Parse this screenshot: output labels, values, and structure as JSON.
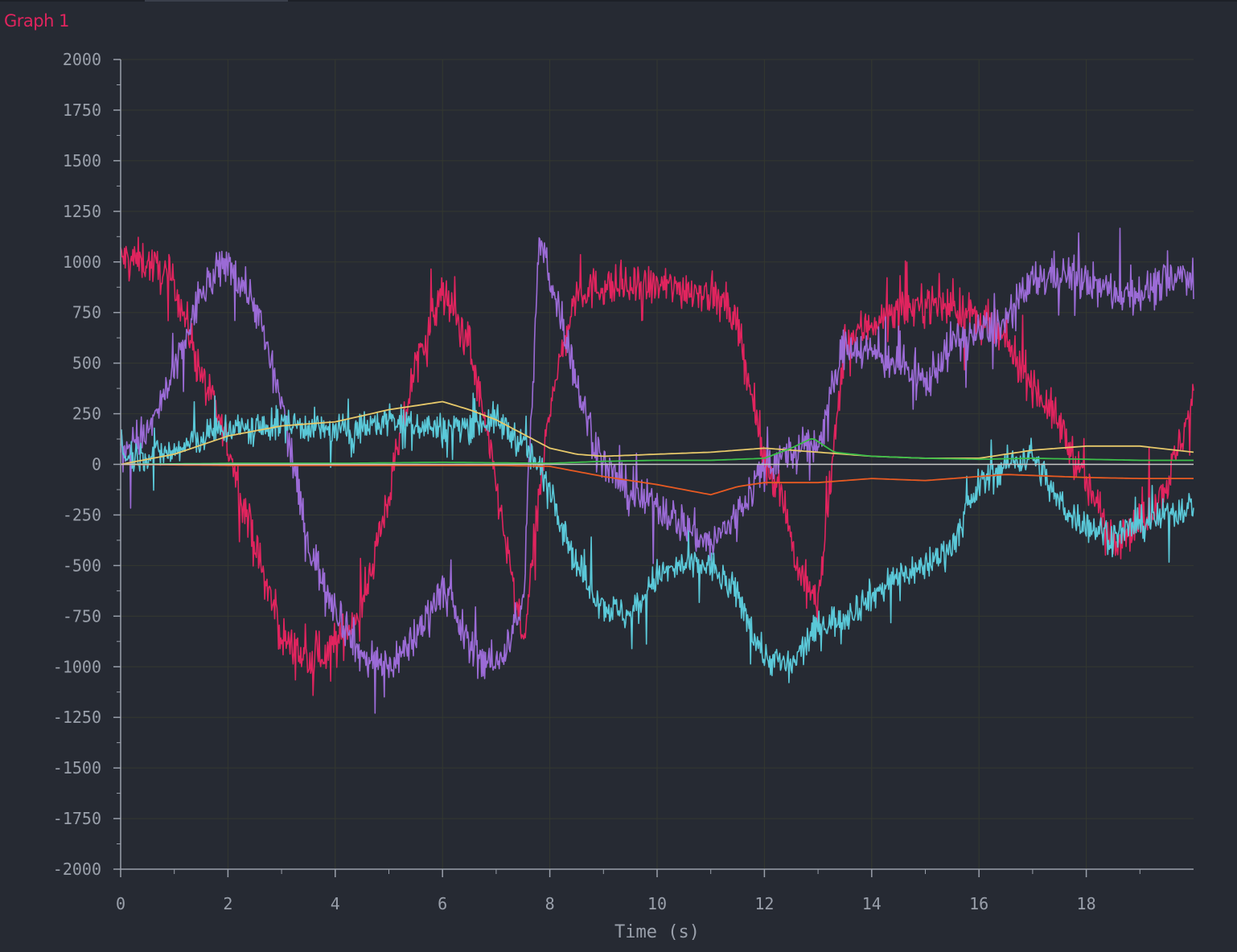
{
  "tab": {
    "title": "Graph 1"
  },
  "colors": {
    "background": "#262a33",
    "grid": "#343830",
    "axis": "#9aa0ab",
    "title": "#e0245e"
  },
  "chart_data": {
    "type": "line",
    "title": "",
    "xlabel": "Time (s)",
    "ylabel": "",
    "xlim": [
      0,
      20
    ],
    "ylim": [
      -2000,
      2000
    ],
    "x_ticks": [
      0,
      2,
      4,
      6,
      8,
      10,
      12,
      14,
      16,
      18
    ],
    "y_ticks": [
      2000,
      1750,
      1500,
      1250,
      1000,
      750,
      500,
      250,
      0,
      -250,
      -500,
      -750,
      -1000,
      -1250,
      -1500,
      -1750,
      -2000
    ],
    "grid": true,
    "legend": "none",
    "series": [
      {
        "color": "#e0245e",
        "noise": 50,
        "x": [
          0,
          0.5,
          1,
          1.5,
          2,
          2.5,
          3,
          3.5,
          4,
          4.5,
          5,
          5.5,
          6,
          6.5,
          7,
          7.5,
          8,
          8.5,
          9,
          9.5,
          10,
          10.5,
          11,
          11.5,
          12,
          12.3,
          12.6,
          13,
          13.5,
          14,
          14.5,
          15,
          15.5,
          16,
          16.5,
          17,
          17.5,
          18,
          18.5,
          19,
          19.5,
          20
        ],
        "y": [
          1020,
          1000,
          900,
          450,
          100,
          -400,
          -850,
          -980,
          -900,
          -700,
          -150,
          500,
          850,
          600,
          -100,
          -900,
          300,
          850,
          880,
          870,
          880,
          870,
          850,
          700,
          0,
          -100,
          -500,
          -700,
          600,
          700,
          750,
          800,
          780,
          720,
          600,
          400,
          200,
          -100,
          -350,
          -300,
          -100,
          320
        ]
      },
      {
        "color": "#9b6bd6",
        "noise": 50,
        "x": [
          0,
          0.5,
          1,
          1.5,
          2,
          2.5,
          3,
          3.5,
          4,
          4.5,
          5,
          5.5,
          6,
          6.5,
          7,
          7.5,
          7.8,
          8.2,
          8.6,
          9,
          9.5,
          10,
          10.5,
          11,
          11.5,
          12,
          12.5,
          13,
          13.5,
          14,
          14.5,
          15,
          15.5,
          16,
          16.5,
          17,
          17.5,
          18,
          18.5,
          19,
          19.5,
          20
        ],
        "y": [
          80,
          150,
          450,
          850,
          1000,
          800,
          300,
          -400,
          -700,
          -950,
          -1000,
          -850,
          -600,
          -900,
          -1000,
          -700,
          1100,
          750,
          300,
          0,
          -150,
          -200,
          -300,
          -400,
          -250,
          0,
          50,
          100,
          600,
          550,
          500,
          400,
          600,
          650,
          700,
          900,
          950,
          900,
          850,
          850,
          900,
          950
        ]
      },
      {
        "color": "#5ac8d8",
        "noise": 40,
        "x": [
          0,
          0.5,
          1,
          1.5,
          2,
          2.5,
          3,
          3.5,
          4,
          4.5,
          5,
          5.5,
          6,
          6.5,
          7,
          7.5,
          8,
          8.5,
          9,
          9.5,
          10,
          10.5,
          11,
          11.5,
          12,
          12.5,
          13,
          13.5,
          14,
          14.5,
          15,
          15.5,
          16,
          16.5,
          17,
          17.5,
          18,
          18.5,
          19,
          19.5,
          20
        ],
        "y": [
          40,
          50,
          60,
          130,
          180,
          170,
          200,
          190,
          160,
          180,
          220,
          200,
          170,
          200,
          220,
          100,
          -100,
          -500,
          -700,
          -750,
          -550,
          -500,
          -500,
          -650,
          -950,
          -1000,
          -800,
          -750,
          -650,
          -550,
          -500,
          -400,
          -100,
          0,
          50,
          -200,
          -300,
          -350,
          -300,
          -250,
          -200
        ]
      },
      {
        "color": "#e6c86a",
        "noise": 0,
        "x": [
          0,
          1,
          2,
          3,
          4,
          5,
          6,
          6.5,
          7,
          7.5,
          8,
          8.5,
          9,
          10,
          11,
          11.5,
          12,
          13,
          14,
          15,
          16,
          17,
          18,
          19,
          20
        ],
        "y": [
          0,
          50,
          140,
          190,
          210,
          270,
          310,
          270,
          220,
          150,
          80,
          50,
          40,
          50,
          60,
          70,
          80,
          60,
          40,
          30,
          30,
          70,
          90,
          90,
          60
        ]
      },
      {
        "color": "#3cbf4a",
        "noise": 0,
        "x": [
          0,
          2,
          4,
          6,
          8,
          9,
          10,
          11,
          12,
          12.5,
          12.9,
          13.3,
          14,
          15,
          16,
          17,
          18,
          19,
          20
        ],
        "y": [
          0,
          5,
          5,
          10,
          5,
          15,
          20,
          20,
          30,
          80,
          130,
          60,
          40,
          30,
          25,
          30,
          25,
          20,
          20
        ]
      },
      {
        "color": "#e85a22",
        "noise": 0,
        "x": [
          0,
          2,
          4,
          6,
          7,
          8,
          9,
          10,
          11,
          11.5,
          12,
          13,
          14,
          15,
          16,
          16.5,
          17,
          18,
          19,
          20
        ],
        "y": [
          0,
          -5,
          -5,
          -5,
          -5,
          -10,
          -60,
          -100,
          -150,
          -110,
          -90,
          -90,
          -70,
          -80,
          -60,
          -50,
          -55,
          -65,
          -70,
          -70
        ]
      }
    ]
  }
}
